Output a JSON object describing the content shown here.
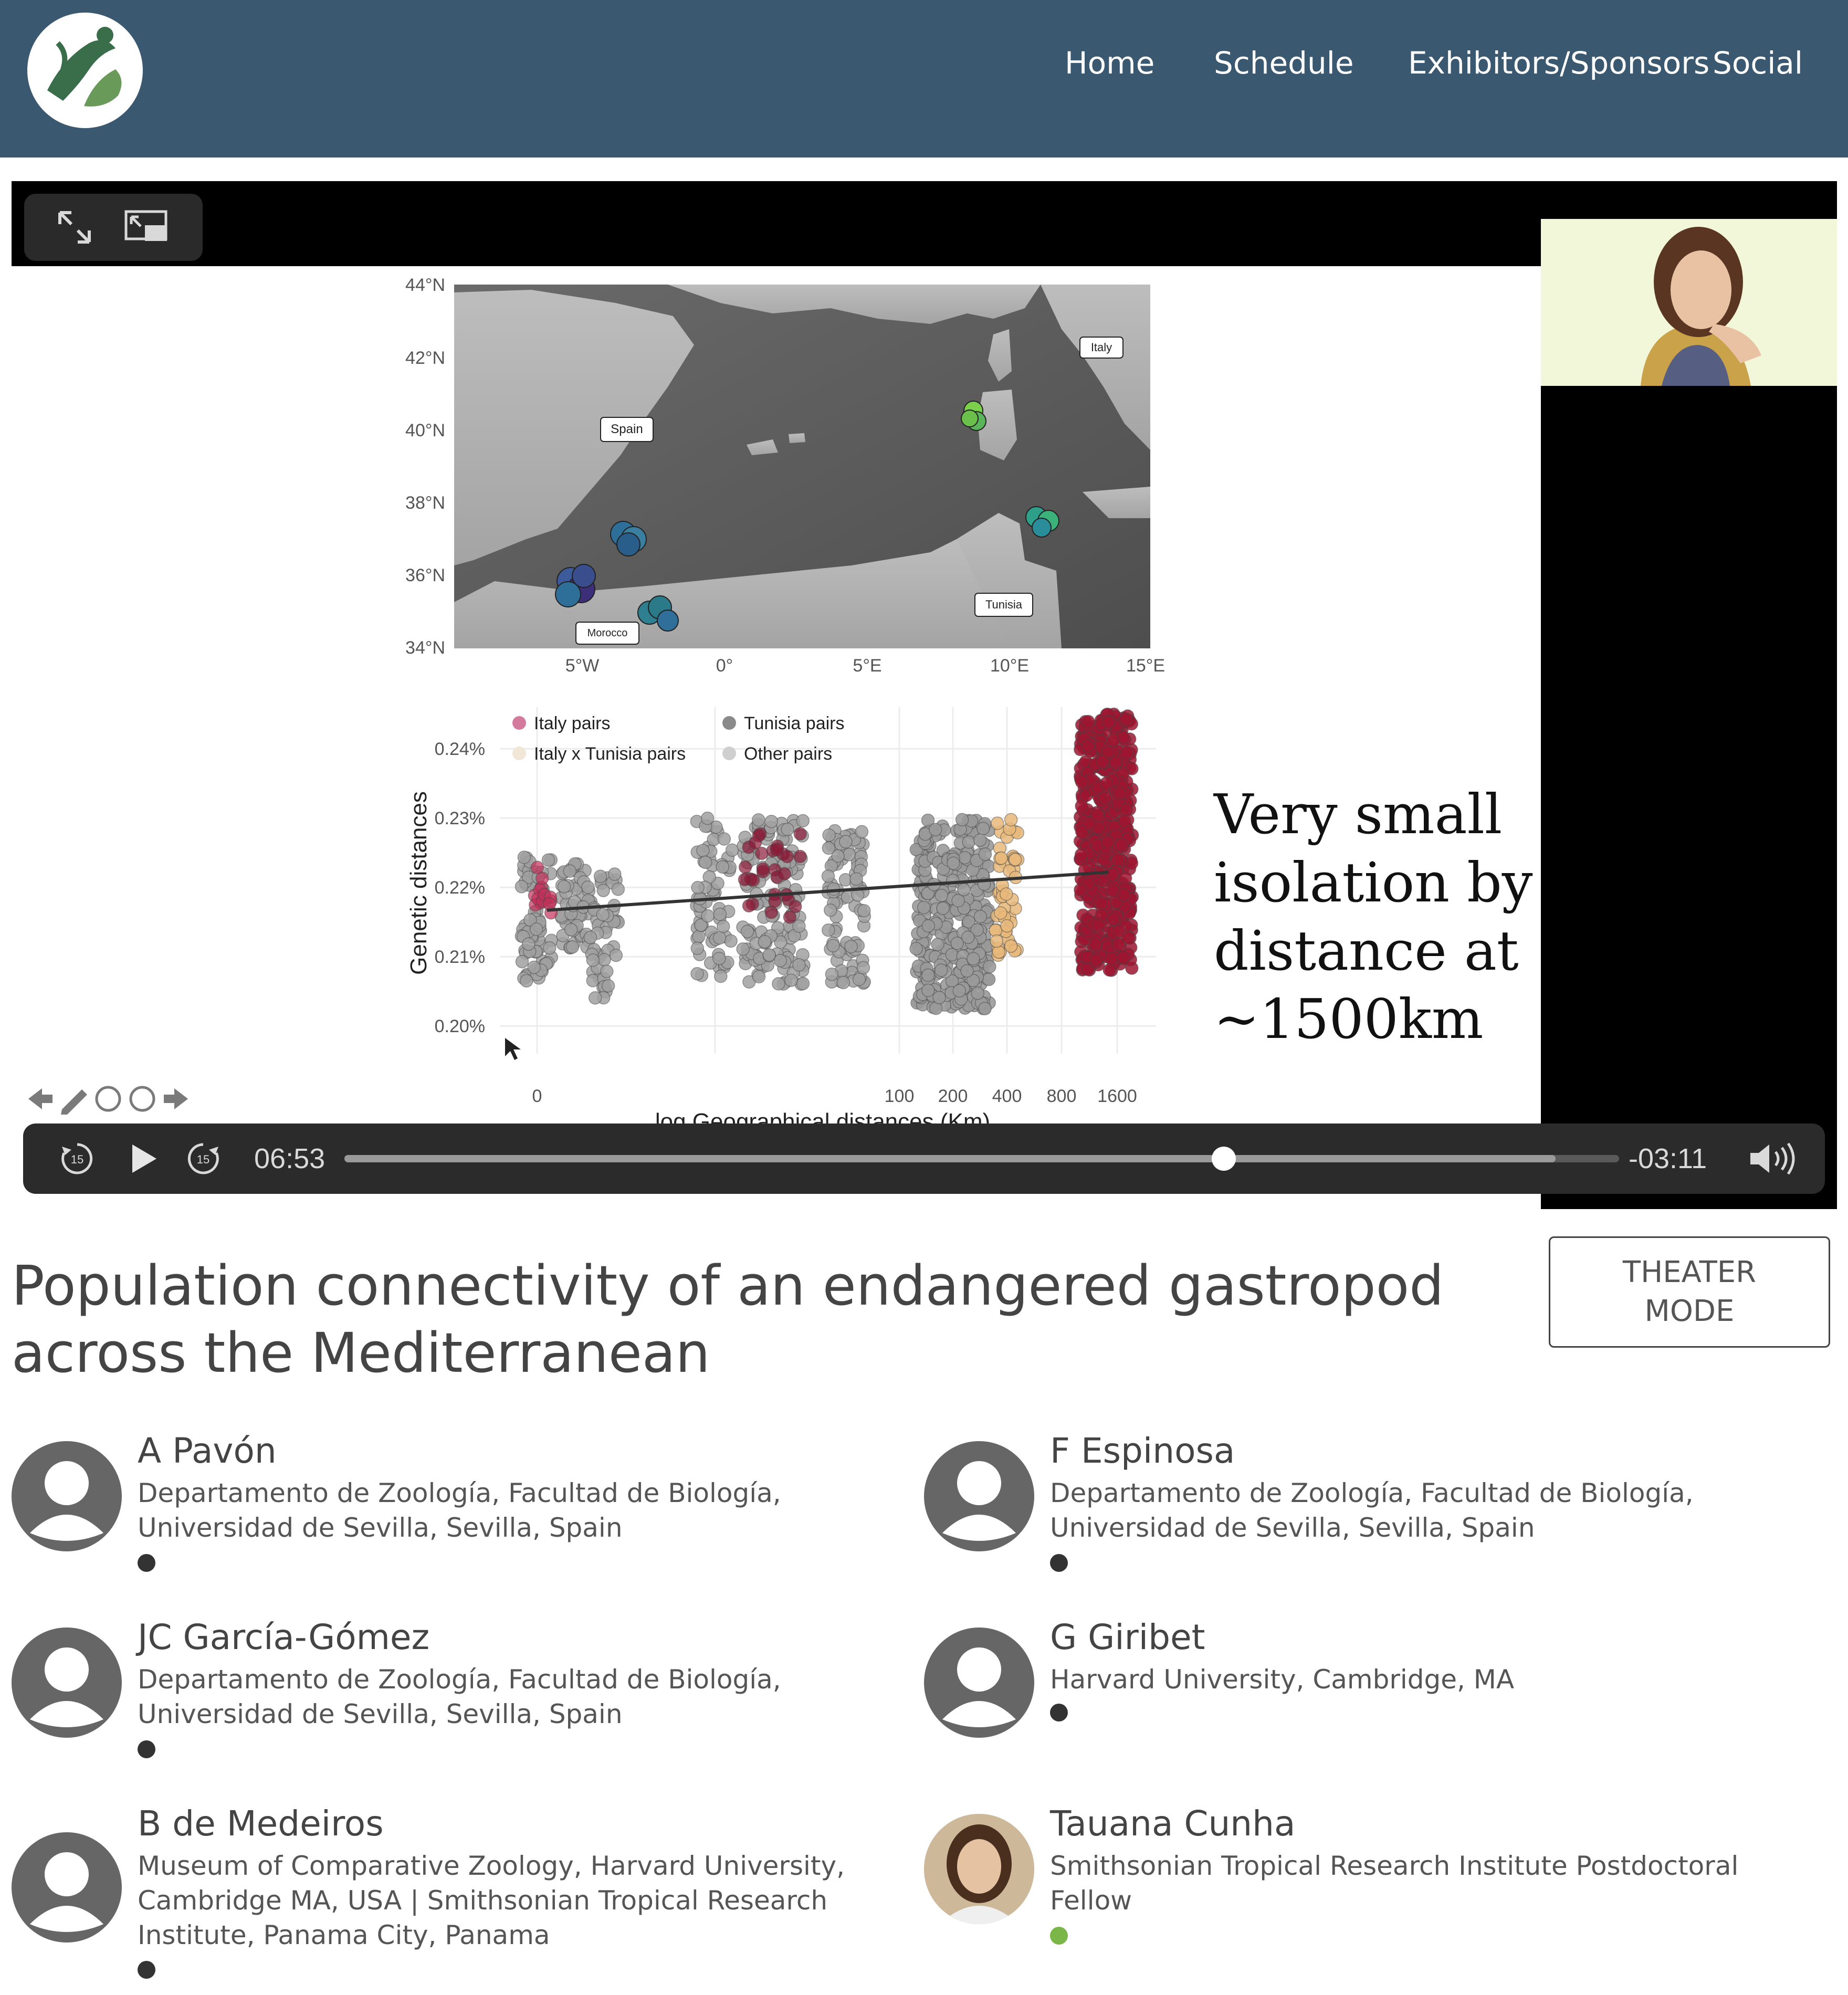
{
  "nav": {
    "items": [
      "Home",
      "Schedule",
      "Exhibitors/Sponsors",
      "Social"
    ]
  },
  "player": {
    "elapsed": "06:53",
    "remaining": "-03:11",
    "progress": 0.69,
    "buffered": 0.95,
    "icons": [
      "expand-icon",
      "picture-in-picture-icon",
      "rewind-15-icon",
      "play-icon",
      "forward-15-icon",
      "volume-icon"
    ]
  },
  "slide": {
    "map": {
      "lat_ticks": [
        "44°N",
        "42°N",
        "40°N",
        "38°N",
        "36°N",
        "34°N"
      ],
      "lon_ticks": [
        "5°W",
        "0°",
        "5°E",
        "10°E",
        "15°E"
      ],
      "labels": [
        "Italy",
        "Spain",
        "Tunisia",
        "Morocco"
      ]
    },
    "caption": [
      "Very small",
      "isolation by",
      "distance at",
      "~1500km"
    ]
  },
  "chart_data": {
    "type": "scatter",
    "xlabel": "log Geographical distances (Km)",
    "ylabel": "Genetic distances",
    "x_ticks": [
      "0",
      "100",
      "200",
      "400",
      "800",
      "1600"
    ],
    "y_ticks": [
      "0.24%",
      "0.23%",
      "0.22%",
      "0.21%",
      "0.20%"
    ],
    "ylim": [
      0.196,
      0.246
    ],
    "legend": [
      "Italy pairs",
      "Tunisia pairs",
      "Italy x Tunisia pairs",
      "Other pairs"
    ],
    "legend_position": "top-left",
    "colors": {
      "Italy pairs": "#c2305a",
      "Tunisia pairs": "#7a1020",
      "Italy x Tunisia pairs": "#e8b87a",
      "Other pairs": "#9a9a9a"
    },
    "trend_line": {
      "start_y": 0.2167,
      "end_y": 0.2222
    },
    "grid": true
  },
  "talk": {
    "title": "Population connectivity of an endangered gastropod across the Mediterranean",
    "theater_label_1": "THEATER",
    "theater_label_2": "MODE"
  },
  "authors": [
    {
      "name": "A Pavón",
      "affiliation": "Departamento de Zoología, Facultad de Biología, Universidad de Sevilla, Sevilla, Spain",
      "status": "#333333"
    },
    {
      "name": "F Espinosa",
      "affiliation": "Departamento de Zoología, Facultad de Biología, Universidad de Sevilla, Sevilla, Spain",
      "status": "#333333"
    },
    {
      "name": "JC García-Gómez",
      "affiliation": "Departamento de Zoología, Facultad de Biología, Universidad de Sevilla, Sevilla, Spain",
      "status": "#333333"
    },
    {
      "name": "G Giribet",
      "affiliation": "Harvard University, Cambridge, MA",
      "status": "#333333"
    },
    {
      "name": "B de Medeiros",
      "affiliation": "Museum of Comparative Zoology, Harvard University, Cambridge MA, USA | Smithsonian Tropical Research Institute, Panama City, Panama",
      "status": "#333333"
    },
    {
      "name": "Tauana Cunha",
      "affiliation": "Smithsonian Tropical Research Institute Postdoctoral Fellow",
      "status": "#7ab648"
    }
  ]
}
